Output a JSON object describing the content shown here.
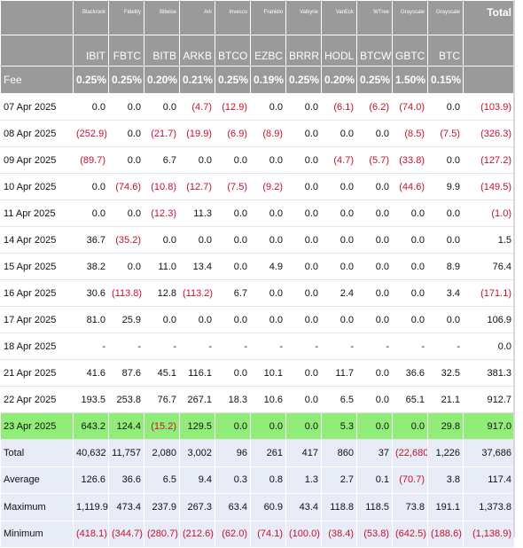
{
  "issuers": [
    "Blackrock",
    "Fidelity",
    "Bitwise",
    "Ark",
    "Invesco",
    "Franklin",
    "Valkyrie",
    "VanEck",
    "WTree",
    "Grayscale",
    "Grayscale"
  ],
  "total_header": "Total",
  "tickers": [
    "IBIT",
    "FBTC",
    "BITB",
    "ARKB",
    "BTCO",
    "EZBC",
    "BRRR",
    "HODL",
    "BTCW",
    "GBTC",
    "BTC"
  ],
  "fee": {
    "label": "Fee",
    "values": [
      "0.25%",
      "0.25%",
      "0.20%",
      "0.21%",
      "0.25%",
      "0.19%",
      "0.25%",
      "0.20%",
      "0.25%",
      "1.50%",
      "0.15%"
    ]
  },
  "rows": [
    {
      "date": "07 Apr 2025",
      "values": [
        "0.0",
        "0.0",
        "0.0",
        "(4.7)",
        "(12.9)",
        "0.0",
        "0.0",
        "(6.1)",
        "(6.2)",
        "(74.0)",
        "0.0"
      ],
      "total": "(103.9)"
    },
    {
      "date": "08 Apr 2025",
      "values": [
        "(252.9)",
        "0.0",
        "(21.7)",
        "(19.9)",
        "(6.9)",
        "(8.9)",
        "0.0",
        "0.0",
        "0.0",
        "(8.5)",
        "(7.5)"
      ],
      "total": "(326.3)"
    },
    {
      "date": "09 Apr 2025",
      "values": [
        "(89.7)",
        "0.0",
        "6.7",
        "0.0",
        "0.0",
        "0.0",
        "0.0",
        "(4.7)",
        "(5.7)",
        "(33.8)",
        "0.0"
      ],
      "total": "(127.2)"
    },
    {
      "date": "10 Apr 2025",
      "values": [
        "0.0",
        "(74.6)",
        "(10.8)",
        "(12.7)",
        "(7.5)",
        "(9.2)",
        "0.0",
        "0.0",
        "0.0",
        "(44.6)",
        "9.9"
      ],
      "total": "(149.5)"
    },
    {
      "date": "11 Apr 2025",
      "values": [
        "0.0",
        "0.0",
        "(12.3)",
        "11.3",
        "0.0",
        "0.0",
        "0.0",
        "0.0",
        "0.0",
        "0.0",
        "0.0"
      ],
      "total": "(1.0)"
    },
    {
      "date": "14 Apr 2025",
      "values": [
        "36.7",
        "(35.2)",
        "0.0",
        "0.0",
        "0.0",
        "0.0",
        "0.0",
        "0.0",
        "0.0",
        "0.0",
        "0.0"
      ],
      "total": "1.5"
    },
    {
      "date": "15 Apr 2025",
      "values": [
        "38.2",
        "0.0",
        "11.0",
        "13.4",
        "0.0",
        "4.9",
        "0.0",
        "0.0",
        "0.0",
        "0.0",
        "8.9"
      ],
      "total": "76.4"
    },
    {
      "date": "16 Apr 2025",
      "values": [
        "30.6",
        "(113.8)",
        "12.8",
        "(113.2)",
        "6.7",
        "0.0",
        "0.0",
        "2.4",
        "0.0",
        "0.0",
        "3.4"
      ],
      "total": "(171.1)"
    },
    {
      "date": "17 Apr 2025",
      "values": [
        "81.0",
        "25.9",
        "0.0",
        "0.0",
        "0.0",
        "0.0",
        "0.0",
        "0.0",
        "0.0",
        "0.0",
        "0.0"
      ],
      "total": "106.9"
    },
    {
      "date": "18 Apr 2025",
      "values": [
        "-",
        "-",
        "-",
        "-",
        "-",
        "-",
        "-",
        "-",
        "-",
        "-",
        "-"
      ],
      "total": "0.0"
    },
    {
      "date": "21 Apr 2025",
      "values": [
        "41.6",
        "87.6",
        "45.1",
        "116.1",
        "0.0",
        "10.1",
        "0.0",
        "11.7",
        "0.0",
        "36.6",
        "32.5"
      ],
      "total": "381.3"
    },
    {
      "date": "22 Apr 2025",
      "values": [
        "193.5",
        "253.8",
        "76.7",
        "267.1",
        "18.3",
        "10.6",
        "0.0",
        "6.5",
        "0.0",
        "65.1",
        "21.1"
      ],
      "total": "912.7"
    },
    {
      "date": "23 Apr 2025",
      "values": [
        "643.2",
        "124.4",
        "(15.2)",
        "129.5",
        "0.0",
        "0.0",
        "0.0",
        "5.3",
        "0.0",
        "0.0",
        "29.8"
      ],
      "total": "917.0",
      "highlight": true
    }
  ],
  "stats": [
    {
      "label": "Total",
      "values": [
        "40,632",
        "11,757",
        "2,080",
        "3,002",
        "96",
        "261",
        "417",
        "860",
        "37",
        "(22,680)",
        "1,226"
      ],
      "total": "37,686"
    },
    {
      "label": "Average",
      "values": [
        "126.6",
        "36.6",
        "6.5",
        "9.4",
        "0.3",
        "0.8",
        "1.3",
        "2.7",
        "0.1",
        "(70.7)",
        "3.8"
      ],
      "total": "117.4"
    },
    {
      "label": "Maximum",
      "values": [
        "1,119.9",
        "473.4",
        "237.9",
        "267.3",
        "63.4",
        "60.9",
        "43.4",
        "118.8",
        "118.5",
        "73.8",
        "191.1"
      ],
      "total": "1,373.8"
    },
    {
      "label": "Minimum",
      "values": [
        "(418.1)",
        "(344.7)",
        "(280.7)",
        "(212.6)",
        "(62.0)",
        "(74.1)",
        "(100.0)",
        "(38.4)",
        "(53.8)",
        "(642.5)",
        "(188.6)"
      ],
      "total": "(1,138.9)"
    }
  ],
  "colors": {
    "header_bg": "#9a9a9a",
    "negative": "#c8102e",
    "highlight_row": "#90ee78",
    "stats_bg": "#e8ecf7"
  }
}
